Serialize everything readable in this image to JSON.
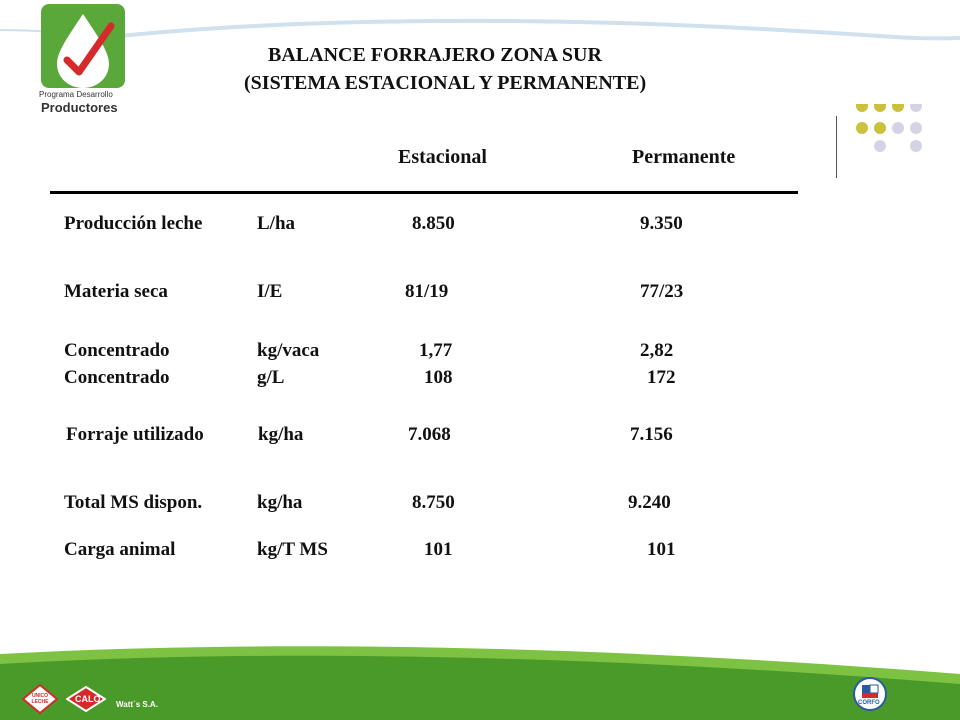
{
  "logo": {
    "line1": "Programa Desarrollo",
    "line2": "Productores"
  },
  "title": {
    "line1": "BALANCE FORRAJERO ZONA SUR",
    "line2": "(SISTEMA ESTACIONAL Y PERMANENTE)"
  },
  "table": {
    "columns": [
      "Estacional",
      "Permanente"
    ],
    "rows": [
      {
        "label": "Producción leche",
        "unit": "L/ha",
        "estacional": "8.850",
        "permanente": "9.350"
      },
      {
        "label": "Materia seca",
        "unit": "I/E",
        "estacional": "81/19",
        "permanente": "77/23"
      },
      {
        "label": "Concentrado",
        "unit": "kg/vaca",
        "estacional": "1,77",
        "permanente": "2,82"
      },
      {
        "label": "Concentrado",
        "unit": "g/L",
        "estacional": "108",
        "permanente": "172"
      },
      {
        "label": "Forraje utilizado",
        "unit": "kg/ha",
        "estacional": "7.068",
        "permanente": "7.156"
      },
      {
        "label": "Total MS dispon.",
        "unit": "kg/ha",
        "estacional": "8.750",
        "permanente": "9.240"
      },
      {
        "label": "Carga animal",
        "unit": "kg/T MS",
        "estacional": "101",
        "permanente": "101"
      }
    ]
  },
  "footer": {
    "logos": [
      "UNICO LECHE",
      "CALO"
    ],
    "company": "Watt´s S.A.",
    "right_logo": "CORFO"
  },
  "colors": {
    "accent_green": "#7dc242",
    "dark_green": "#4a9a2a",
    "dot_olive": "#c9c23a",
    "dot_lavender": "#d4d4e6",
    "brand_red": "#d42a2a"
  }
}
